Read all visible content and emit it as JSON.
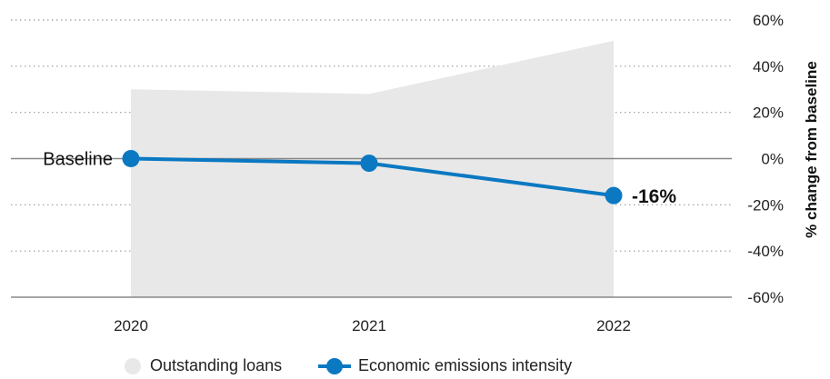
{
  "chart_data": {
    "type": "area+line",
    "categories": [
      "2020",
      "2021",
      "2022"
    ],
    "series": [
      {
        "name": "Outstanding loans",
        "type": "area",
        "values": [
          30,
          28,
          51
        ]
      },
      {
        "name": "Economic emissions intensity",
        "type": "line",
        "values": [
          0,
          -2,
          -16
        ]
      }
    ],
    "ylabel": "% change from baseline",
    "ylim": [
      -60,
      60
    ],
    "yticks": [
      60,
      40,
      20,
      0,
      -20,
      -40,
      -60
    ],
    "ytick_labels": [
      "60%",
      "40%",
      "20%",
      "0%",
      "-20%",
      "-40%",
      "-60%"
    ],
    "annotations": {
      "start": "Baseline",
      "end": "-16%"
    },
    "grid": true,
    "legend_position": "bottom",
    "colors": {
      "area": "#e8e8e8",
      "line": "#0b78c2",
      "grid": "#9a9a9a",
      "axis": "#888888"
    }
  }
}
